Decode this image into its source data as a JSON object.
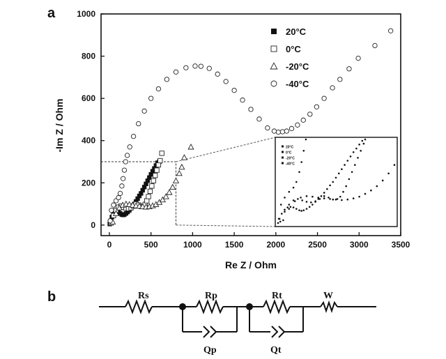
{
  "panels": {
    "a": "a",
    "b": "b"
  },
  "chart_data": {
    "type": "scatter",
    "xlabel": "Re Z / Ohm",
    "ylabel": "-Im Z / Ohm",
    "xlim": [
      -100,
      3500
    ],
    "ylim": [
      -50,
      1000
    ],
    "xticks": [
      0,
      500,
      1000,
      1500,
      2000,
      2500,
      3000,
      3500
    ],
    "yticks": [
      0,
      200,
      400,
      600,
      800,
      1000
    ],
    "grid": false,
    "legend_position": "top-right",
    "series": [
      {
        "name": "20°C",
        "marker": "filled-square",
        "x": [
          5,
          15,
          30,
          50,
          70,
          90,
          110,
          130,
          150,
          165,
          180,
          200,
          220,
          240,
          260,
          280,
          300,
          320,
          340,
          360,
          380,
          400,
          420,
          440,
          460,
          480,
          500,
          520,
          540,
          560,
          580,
          600
        ],
        "y": [
          5,
          20,
          38,
          52,
          60,
          62,
          60,
          55,
          50,
          48,
          50,
          55,
          62,
          70,
          80,
          90,
          100,
          112,
          125,
          138,
          150,
          165,
          180,
          195,
          210,
          225,
          240,
          255,
          268,
          282,
          295,
          300
        ]
      },
      {
        "name": "0°C",
        "marker": "open-square",
        "x": [
          20,
          50,
          80,
          110,
          140,
          170,
          200,
          230,
          260,
          290,
          320,
          350,
          380,
          410,
          430,
          450,
          470,
          490,
          510,
          530,
          550,
          570,
          590,
          610,
          630
        ],
        "y": [
          10,
          45,
          70,
          85,
          90,
          85,
          80,
          78,
          82,
          90,
          100,
          95,
          88,
          90,
          98,
          115,
          135,
          160,
          185,
          210,
          235,
          260,
          285,
          305,
          340
        ]
      },
      {
        "name": "-20°C",
        "marker": "open-triangle",
        "x": [
          40,
          80,
          120,
          160,
          200,
          240,
          280,
          320,
          360,
          400,
          440,
          480,
          520,
          560,
          600,
          640,
          680,
          720,
          760,
          800,
          840,
          870,
          900,
          980
        ],
        "y": [
          15,
          55,
          82,
          95,
          100,
          98,
          95,
          92,
          90,
          88,
          86,
          88,
          92,
          98,
          108,
          120,
          135,
          155,
          180,
          210,
          245,
          275,
          320,
          370
        ]
      },
      {
        "name": "-40°C",
        "marker": "open-circle",
        "x": [
          10,
          25,
          50,
          80,
          110,
          130,
          150,
          165,
          180,
          195,
          215,
          245,
          290,
          350,
          420,
          500,
          590,
          690,
          800,
          920,
          1030,
          1100,
          1200,
          1300,
          1400,
          1500,
          1600,
          1700,
          1800,
          1900,
          1980,
          2030,
          2080,
          2130,
          2190,
          2260,
          2330,
          2410,
          2490,
          2580,
          2680,
          2770,
          2880,
          2990,
          3190,
          3380
        ],
        "y": [
          20,
          70,
          95,
          115,
          130,
          150,
          185,
          220,
          260,
          300,
          330,
          370,
          420,
          480,
          540,
          600,
          645,
          690,
          725,
          745,
          753,
          752,
          742,
          715,
          680,
          638,
          592,
          548,
          502,
          460,
          445,
          440,
          442,
          445,
          457,
          474,
          497,
          525,
          560,
          600,
          650,
          690,
          740,
          790,
          850,
          920
        ]
      }
    ],
    "inset": {
      "source_window": {
        "x": [
          0,
          800
        ],
        "y": [
          0,
          300
        ]
      },
      "legend": [
        "20°C",
        "0°C",
        "-20°C",
        "-40°C"
      ]
    }
  },
  "circuit": {
    "rs": "Rs",
    "rp": "Rp",
    "rt": "Rt",
    "w": "W",
    "qp": "Qp",
    "qt": "Qt"
  }
}
